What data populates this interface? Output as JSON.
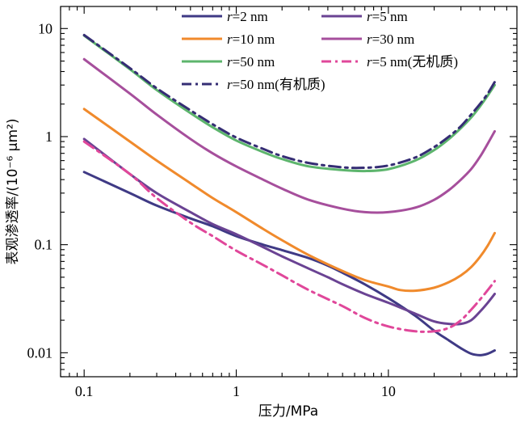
{
  "chart_data": {
    "type": "line",
    "x_scale": "log",
    "y_scale": "log",
    "xlim": [
      0.07,
      70
    ],
    "ylim": [
      0.006,
      16
    ],
    "xlabel": "压力/MPa",
    "ylabel": "表观渗透率/(10⁻⁶ μm²)",
    "x_ticks": [
      {
        "value": 0.1,
        "label": "0.1"
      },
      {
        "value": 1,
        "label": "1"
      },
      {
        "value": 10,
        "label": "10"
      }
    ],
    "y_ticks": [
      {
        "value": 0.01,
        "label": "0.01"
      },
      {
        "value": 0.1,
        "label": "0.1"
      },
      {
        "value": 1,
        "label": "1"
      },
      {
        "value": 10,
        "label": "10"
      }
    ],
    "grid": false,
    "legend_position": "top",
    "series": [
      {
        "name": "r=2 nm",
        "color": "#3f3a85",
        "dash": "solid",
        "points": [
          [
            0.1,
            0.47
          ],
          [
            0.2,
            0.3
          ],
          [
            0.3,
            0.23
          ],
          [
            0.5,
            0.175
          ],
          [
            0.7,
            0.148
          ],
          [
            1,
            0.12
          ],
          [
            1.5,
            0.1
          ],
          [
            2,
            0.089
          ],
          [
            3,
            0.075
          ],
          [
            4,
            0.064
          ],
          [
            5,
            0.055
          ],
          [
            7,
            0.043
          ],
          [
            10,
            0.032
          ],
          [
            15,
            0.022
          ],
          [
            20,
            0.016
          ],
          [
            25,
            0.013
          ],
          [
            30,
            0.011
          ],
          [
            35,
            0.0098
          ],
          [
            40,
            0.0095
          ],
          [
            45,
            0.0098
          ],
          [
            50,
            0.0105
          ]
        ]
      },
      {
        "name": "r=5 nm",
        "color": "#6a4393",
        "dash": "solid",
        "points": [
          [
            0.1,
            0.95
          ],
          [
            0.2,
            0.45
          ],
          [
            0.3,
            0.3
          ],
          [
            0.5,
            0.2
          ],
          [
            0.7,
            0.155
          ],
          [
            1,
            0.125
          ],
          [
            1.5,
            0.095
          ],
          [
            2,
            0.078
          ],
          [
            3,
            0.06
          ],
          [
            4,
            0.05
          ],
          [
            5,
            0.043
          ],
          [
            7,
            0.035
          ],
          [
            10,
            0.029
          ],
          [
            15,
            0.023
          ],
          [
            20,
            0.0195
          ],
          [
            25,
            0.0185
          ],
          [
            30,
            0.0185
          ],
          [
            35,
            0.02
          ],
          [
            40,
            0.024
          ],
          [
            45,
            0.029
          ],
          [
            50,
            0.035
          ]
        ]
      },
      {
        "name": "r=10 nm",
        "color": "#f08a2c",
        "dash": "solid",
        "points": [
          [
            0.1,
            1.8
          ],
          [
            0.2,
            0.9
          ],
          [
            0.3,
            0.6
          ],
          [
            0.5,
            0.37
          ],
          [
            0.7,
            0.27
          ],
          [
            1,
            0.2
          ],
          [
            1.5,
            0.14
          ],
          [
            2,
            0.11
          ],
          [
            3,
            0.08
          ],
          [
            5,
            0.057
          ],
          [
            7,
            0.047
          ],
          [
            10,
            0.041
          ],
          [
            12,
            0.038
          ],
          [
            15,
            0.0375
          ],
          [
            20,
            0.04
          ],
          [
            25,
            0.045
          ],
          [
            30,
            0.052
          ],
          [
            35,
            0.062
          ],
          [
            40,
            0.077
          ],
          [
            45,
            0.098
          ],
          [
            50,
            0.128
          ]
        ]
      },
      {
        "name": "r=30 nm",
        "color": "#a64f9c",
        "dash": "solid",
        "points": [
          [
            0.1,
            5.2
          ],
          [
            0.2,
            2.5
          ],
          [
            0.3,
            1.6
          ],
          [
            0.5,
            0.95
          ],
          [
            0.7,
            0.7
          ],
          [
            1,
            0.53
          ],
          [
            1.5,
            0.4
          ],
          [
            2,
            0.33
          ],
          [
            3,
            0.26
          ],
          [
            5,
            0.215
          ],
          [
            7,
            0.2
          ],
          [
            10,
            0.2
          ],
          [
            15,
            0.22
          ],
          [
            20,
            0.26
          ],
          [
            25,
            0.32
          ],
          [
            30,
            0.4
          ],
          [
            35,
            0.5
          ],
          [
            40,
            0.65
          ],
          [
            45,
            0.86
          ],
          [
            50,
            1.12
          ]
        ]
      },
      {
        "name": "r=50 nm",
        "color": "#5db56d",
        "dash": "solid",
        "points": [
          [
            0.1,
            8.6
          ],
          [
            0.2,
            4.2
          ],
          [
            0.3,
            2.7
          ],
          [
            0.5,
            1.65
          ],
          [
            0.7,
            1.22
          ],
          [
            1,
            0.92
          ],
          [
            1.5,
            0.72
          ],
          [
            2,
            0.62
          ],
          [
            3,
            0.53
          ],
          [
            5,
            0.49
          ],
          [
            7,
            0.48
          ],
          [
            10,
            0.5
          ],
          [
            15,
            0.6
          ],
          [
            20,
            0.75
          ],
          [
            25,
            0.95
          ],
          [
            30,
            1.2
          ],
          [
            35,
            1.5
          ],
          [
            40,
            1.9
          ],
          [
            45,
            2.4
          ],
          [
            50,
            3.0
          ]
        ]
      },
      {
        "name": "r=5 nm(无机质)",
        "color": "#e0479a",
        "dash": "dashdot",
        "points": [
          [
            0.1,
            0.9
          ],
          [
            0.2,
            0.45
          ],
          [
            0.3,
            0.27
          ],
          [
            0.5,
            0.16
          ],
          [
            0.7,
            0.12
          ],
          [
            1,
            0.088
          ],
          [
            1.5,
            0.065
          ],
          [
            2,
            0.052
          ],
          [
            3,
            0.038
          ],
          [
            5,
            0.027
          ],
          [
            7,
            0.021
          ],
          [
            10,
            0.0175
          ],
          [
            15,
            0.0158
          ],
          [
            20,
            0.0158
          ],
          [
            25,
            0.017
          ],
          [
            30,
            0.02
          ],
          [
            35,
            0.025
          ],
          [
            40,
            0.031
          ],
          [
            45,
            0.038
          ],
          [
            50,
            0.046
          ]
        ]
      },
      {
        "name": "r=50 nm(有机质)",
        "color": "#352d74",
        "dash": "dashdot",
        "points": [
          [
            0.1,
            8.7
          ],
          [
            0.2,
            4.3
          ],
          [
            0.3,
            2.8
          ],
          [
            0.5,
            1.75
          ],
          [
            0.7,
            1.3
          ],
          [
            1,
            0.98
          ],
          [
            1.5,
            0.77
          ],
          [
            2,
            0.66
          ],
          [
            3,
            0.57
          ],
          [
            5,
            0.52
          ],
          [
            7,
            0.515
          ],
          [
            10,
            0.54
          ],
          [
            15,
            0.64
          ],
          [
            20,
            0.8
          ],
          [
            25,
            1.0
          ],
          [
            30,
            1.25
          ],
          [
            35,
            1.6
          ],
          [
            40,
            2.0
          ],
          [
            45,
            2.5
          ],
          [
            50,
            3.2
          ]
        ]
      }
    ]
  }
}
